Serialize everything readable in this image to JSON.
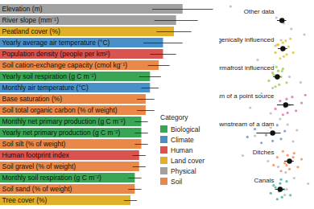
{
  "chart_data": [
    {
      "type": "bar",
      "orientation": "horizontal",
      "tick_labels": "y",
      "categories": [
        "Elevation (m)",
        "River slope (mm⁻¹)",
        "Peatland cover (%)",
        "Yearly average air temperature (°C)",
        "Population density (people per km²)",
        "Soil cation-exchange capacity (cmol kg⁻¹)",
        "Yearly soil respiration (g C m⁻²)",
        "Monthly air temperature (°C)",
        "Base saturation (%)",
        "Soil total organic carbon (% of weight)",
        "Monthly net primary production (g C m⁻²)",
        "Yearly net primary production (g C m⁻²)",
        "Soil silt (% of weight)",
        "Human footprint index",
        "Soil gravel (% of weight)",
        "Monthly soil respiration (g C m⁻²)",
        "Soil sand (% of weight)",
        "Tree cover (%)"
      ],
      "values": [
        84,
        81,
        80,
        75,
        75,
        73,
        69,
        69,
        67,
        67,
        65,
        65,
        65,
        64,
        64,
        62,
        62,
        60
      ],
      "errors": [
        14,
        10,
        8,
        9,
        6,
        5,
        5,
        4,
        4,
        4,
        3,
        3,
        3,
        3,
        3,
        3,
        3,
        3
      ],
      "groups": [
        "Physical",
        "Physical",
        "Land cover",
        "Climate",
        "Human",
        "Soil",
        "Biological",
        "Climate",
        "Soil",
        "Soil",
        "Biological",
        "Biological",
        "Soil",
        "Human",
        "Soil",
        "Biological",
        "Soil",
        "Land cover"
      ],
      "legend": "bottom-right",
      "legend_title": "Category",
      "legend_entries": [
        {
          "name": "Biological",
          "color": "#3aa655"
        },
        {
          "name": "Climate",
          "color": "#4a90c8"
        },
        {
          "name": "Human",
          "color": "#d9534f"
        },
        {
          "name": "Land cover",
          "color": "#e0b02a"
        },
        {
          "name": "Physical",
          "color": "#a0a0a0"
        },
        {
          "name": "Soil",
          "color": "#e8894a"
        }
      ],
      "xlim": [
        0,
        100
      ]
    },
    {
      "type": "strip",
      "tick_labels": false,
      "categories": [
        "Other data",
        "Thermogenically influenced",
        "Permafrost influenced",
        "Downstream of a point source",
        "Downstream of a dam",
        "Ditches",
        "Canals"
      ],
      "colors": [
        "#555555",
        "#e6c229",
        "#9ccc3c",
        "#d96bb0",
        "#6f8fb8",
        "#f08a4b",
        "#3bb39c"
      ],
      "points": [
        [
          12,
          25,
          33,
          41,
          48,
          52,
          55,
          58,
          61,
          63,
          65,
          67,
          69,
          71,
          73,
          75,
          77,
          80,
          83,
          87,
          91,
          95,
          38,
          57,
          66,
          72,
          79,
          45,
          60,
          70
        ],
        [
          55,
          60,
          63,
          65,
          67,
          68,
          69,
          70,
          71,
          72,
          74,
          76,
          79,
          62
        ],
        [
          48,
          53,
          57,
          60,
          62,
          63,
          64,
          66,
          68,
          72,
          58,
          61
        ],
        [
          50,
          60,
          65,
          68,
          70,
          72,
          73,
          75,
          78,
          82,
          88,
          92
        ],
        [
          20,
          30,
          38,
          45,
          50,
          55,
          57,
          59,
          62,
          66,
          70,
          42
        ],
        [
          50,
          58,
          62,
          66,
          70,
          73,
          75,
          77,
          80,
          84,
          88,
          68,
          72,
          79
        ],
        [
          48,
          55,
          58,
          62,
          64,
          65,
          67,
          69,
          72,
          76,
          60,
          66
        ]
      ],
      "means": [
        67,
        68,
        62,
        71,
        57,
        75,
        65
      ],
      "error_low": [
        62,
        63,
        58,
        62,
        40,
        70,
        60
      ],
      "error_high": [
        72,
        73,
        66,
        80,
        66,
        80,
        70
      ],
      "xlim": [
        0,
        100
      ]
    }
  ]
}
